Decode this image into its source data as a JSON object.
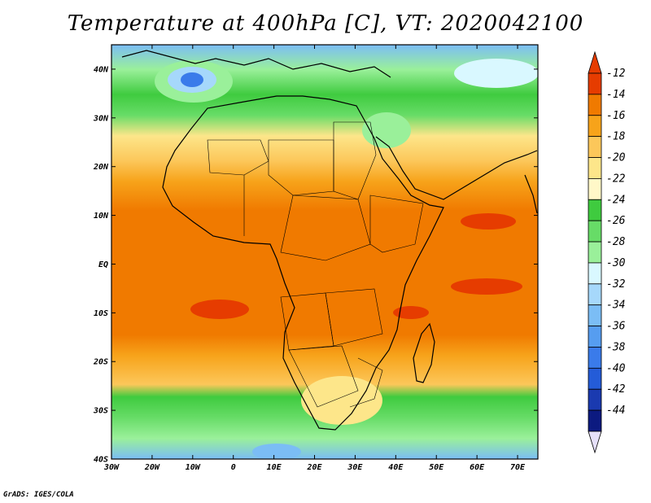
{
  "title": "Temperature at 400hPa [C], VT: 2020042100",
  "credit": "GrADS: IGES/COLA",
  "map": {
    "lat_labels": [
      "40N",
      "30N",
      "20N",
      "10N",
      "EQ",
      "10S",
      "20S",
      "30S",
      "40S"
    ],
    "lon_labels": [
      "30W",
      "20W",
      "10W",
      "0",
      "10E",
      "20E",
      "30E",
      "40E",
      "50E",
      "60E",
      "70E"
    ],
    "lat_range": [
      -40,
      45
    ],
    "lon_range": [
      -30,
      75
    ]
  },
  "colorbar": {
    "levels": [
      "-12",
      "-14",
      "-16",
      "-18",
      "-20",
      "-22",
      "-24",
      "-26",
      "-28",
      "-30",
      "-32",
      "-34",
      "-36",
      "-38",
      "-40",
      "-42",
      "-44"
    ],
    "colors": [
      "#e63c00",
      "#f07a00",
      "#f7a31a",
      "#fcc75a",
      "#fde68a",
      "#fff8c8",
      "#3fcb3f",
      "#67dc67",
      "#9af09a",
      "#d9f8ff",
      "#a6d8fb",
      "#7bbdf5",
      "#569df0",
      "#3a7bea",
      "#245cd8",
      "#1a3ab0",
      "#0c1a80"
    ],
    "top_color": "#e63c00",
    "bottom_color": "#e6e0fa"
  }
}
